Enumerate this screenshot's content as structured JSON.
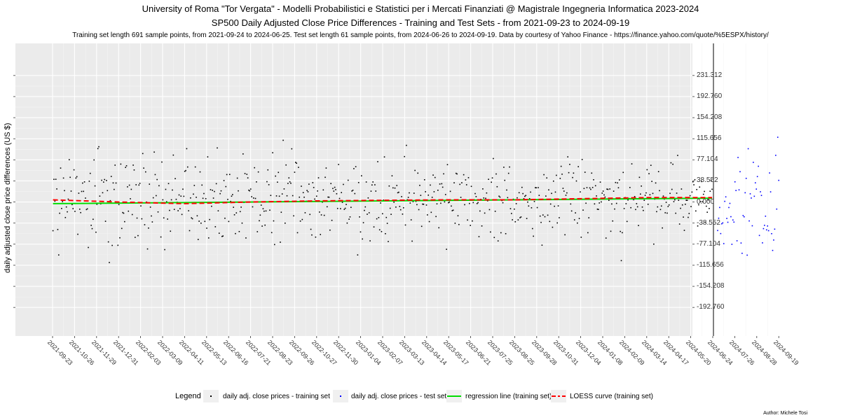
{
  "chart_data": {
    "type": "scatter",
    "title": "University of Roma \"Tor Vergata\" - Modelli Probabilistici e Statistici per i Mercati Finanziati @ Magistrale Ingegneria Informatica 2023-2024",
    "subtitle": "SP500 Daily Adjusted Close Price Differences - Training and Test Sets - from 2021-09-23 to 2024-09-19",
    "caption": "Training set length 691 sample points, from 2021-09-24 to 2024-06-25. Test set length 61 sample points, from 2024-06-26 to 2024-09-19. Data by courtesy of Yahoo Finance - https://finance.yahoo.com/quote/%5ESPX/history/",
    "ylabel": "daily adjusted close price differences (US $)",
    "xlabel": "",
    "ylim": [
      -245,
      290
    ],
    "y_tick_labels": [
      "231.312",
      "192.760",
      "154.208",
      "115.656",
      "77.104",
      "38.552",
      "0.000",
      "-38.552",
      "-77.104",
      "-115.656",
      "-154.208",
      "-192.760"
    ],
    "x_tick_labels": [
      "2021-09-23",
      "2021-10-26",
      "2021-11-29",
      "2021-12-31",
      "2022-02-03",
      "2022-03-09",
      "2022-04-11",
      "2022-05-13",
      "2022-06-16",
      "2022-07-21",
      "2022-08-23",
      "2022-09-26",
      "2022-10-27",
      "2022-11-30",
      "2023-01-04",
      "2023-02-07",
      "2023-03-13",
      "2023-04-14",
      "2023-05-17",
      "2023-06-21",
      "2023-07-25",
      "2023-08-25",
      "2023-09-28",
      "2023-10-31",
      "2023-12-04",
      "2024-01-08",
      "2024-02-09",
      "2024-03-14",
      "2024-04-17",
      "2024-05-20",
      "2024-06-24",
      "2024-07-26",
      "2024-08-28",
      "2024-09-19"
    ],
    "split_date": "2024-06-25",
    "grid": true,
    "legend_position": "bottom",
    "legend_title": "Legend",
    "series": [
      {
        "name": "daily adj. close prices - training set",
        "kind": "points",
        "color": "#000000",
        "count": 691,
        "date_range": [
          "2021-09-24",
          "2024-06-25"
        ]
      },
      {
        "name": "daily adj. close prices - test set",
        "kind": "points",
        "color": "#0000ff",
        "count": 61,
        "date_range": [
          "2024-06-26",
          "2024-09-19"
        ]
      },
      {
        "name": "regression line (training set)",
        "kind": "line",
        "color": "#00dd00",
        "y": [
          -3,
          7
        ]
      },
      {
        "name": "LOESS curve (training set)",
        "kind": "dashed-line",
        "color": "#ff0000",
        "y": [
          4,
          0,
          -3,
          0,
          2,
          3,
          4,
          4,
          6,
          8,
          8
        ]
      }
    ],
    "author": "Author: Michele Tosi"
  }
}
